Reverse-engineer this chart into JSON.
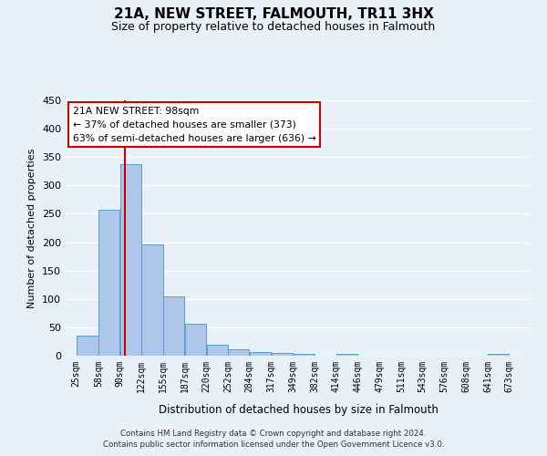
{
  "title": "21A, NEW STREET, FALMOUTH, TR11 3HX",
  "subtitle": "Size of property relative to detached houses in Falmouth",
  "xlabel": "Distribution of detached houses by size in Falmouth",
  "ylabel": "Number of detached properties",
  "bar_color": "#aec6e8",
  "bar_edge_color": "#5a9fd4",
  "bar_left_edges": [
    25,
    58,
    90,
    122,
    155,
    187,
    220,
    252,
    284,
    317,
    349,
    382,
    414,
    446,
    479,
    511,
    543,
    576,
    608,
    641
  ],
  "bar_widths": [
    33,
    32,
    32,
    33,
    32,
    33,
    32,
    32,
    33,
    32,
    33,
    32,
    32,
    33,
    32,
    32,
    33,
    32,
    33,
    32
  ],
  "bar_heights": [
    36,
    257,
    337,
    196,
    104,
    57,
    20,
    11,
    7,
    5,
    4,
    0,
    4,
    0,
    0,
    0,
    0,
    0,
    0,
    3
  ],
  "tick_labels": [
    "25sqm",
    "58sqm",
    "90sqm",
    "122sqm",
    "155sqm",
    "187sqm",
    "220sqm",
    "252sqm",
    "284sqm",
    "317sqm",
    "349sqm",
    "382sqm",
    "414sqm",
    "446sqm",
    "479sqm",
    "511sqm",
    "543sqm",
    "576sqm",
    "608sqm",
    "641sqm",
    "673sqm"
  ],
  "tick_positions": [
    25,
    58,
    90,
    122,
    155,
    187,
    220,
    252,
    284,
    317,
    349,
    382,
    414,
    446,
    479,
    511,
    543,
    576,
    608,
    641,
    673
  ],
  "ylim": [
    0,
    450
  ],
  "xlim": [
    9,
    705
  ],
  "yticks": [
    0,
    50,
    100,
    150,
    200,
    250,
    300,
    350,
    400,
    450
  ],
  "marker_x": 98,
  "marker_color": "#cc0000",
  "annotation_title": "21A NEW STREET: 98sqm",
  "annotation_line1": "← 37% of detached houses are smaller (373)",
  "annotation_line2": "63% of semi-detached houses are larger (636) →",
  "annotation_box_color": "#ffffff",
  "annotation_box_edge_color": "#cc0000",
  "footer_line1": "Contains HM Land Registry data © Crown copyright and database right 2024.",
  "footer_line2": "Contains public sector information licensed under the Open Government Licence v3.0.",
  "background_color": "#e8f0f8",
  "grid_color": "#ffffff",
  "title_fontsize": 11,
  "subtitle_fontsize": 9
}
